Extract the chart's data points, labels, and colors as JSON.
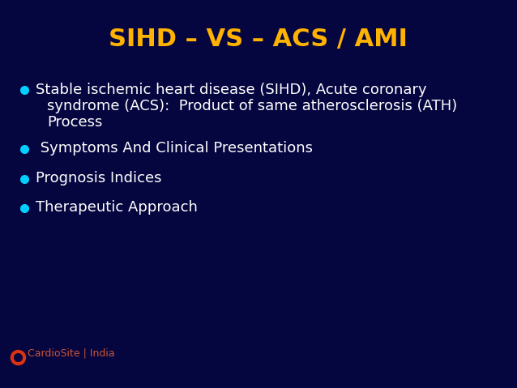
{
  "title": "SIHD – VS – ACS / AMI",
  "title_color": "#FFB300",
  "background_color": "#050540",
  "bullet_color": "#00CFFF",
  "text_color": "#FFFFFF",
  "title_fontsize": 22,
  "body_fontsize": 13,
  "bullet1_lines": [
    "Stable ischemic heart disease (SIHD), Acute coronary",
    "syndrome (ACS):  Product of same atherosclerosis (ATH)",
    "Process"
  ],
  "bullet2": " Symptoms And Clinical Presentations",
  "bullet3": "Prognosis Indices",
  "bullet4": "Therapeutic Approach",
  "watermark_text": "CardioSite | India",
  "watermark_color": "#CC5533",
  "watermark_fontsize": 9
}
